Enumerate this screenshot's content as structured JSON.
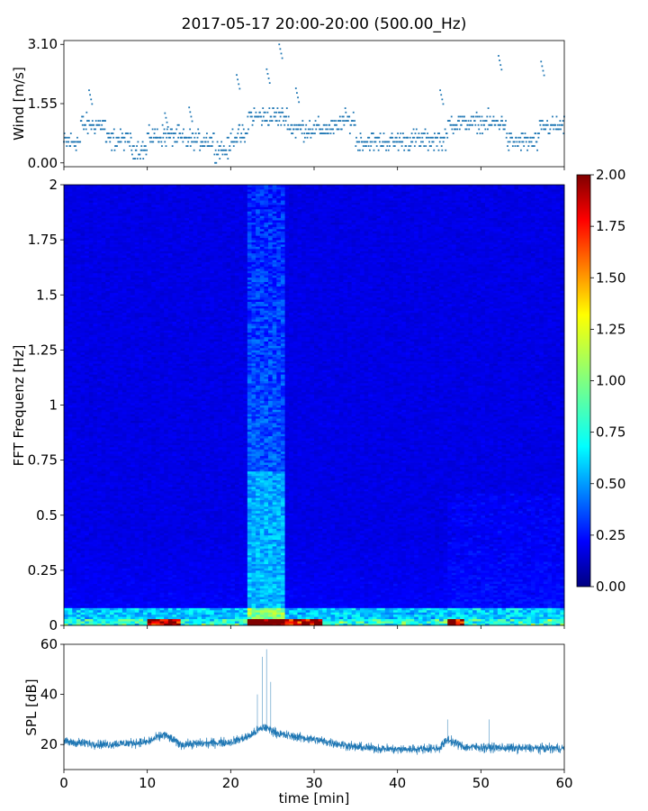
{
  "title": "2017-05-17 20:00-20:00 (500.00_Hz)",
  "colors": {
    "series": "#1f77b4",
    "jet": [
      "#000080",
      "#0000ff",
      "#0080ff",
      "#00ffff",
      "#80ff80",
      "#ffff00",
      "#ff8000",
      "#ff0000",
      "#800000"
    ]
  },
  "chart_data": [
    {
      "id": "wind",
      "type": "scatter",
      "ylabel": "Wind [m/s]",
      "xlim": [
        0,
        60
      ],
      "ylim": [
        -0.1,
        3.2
      ],
      "yticks": [
        0.0,
        1.55,
        3.1
      ],
      "ytick_labels": [
        "0.00",
        "1.55",
        "3.10"
      ],
      "values_description_free": true,
      "segments": [
        {
          "x": [
            0,
            2
          ],
          "mean": 0.55
        },
        {
          "x": [
            2,
            5
          ],
          "mean": 1.0
        },
        {
          "x": [
            5,
            8
          ],
          "mean": 0.6
        },
        {
          "x": [
            8,
            10
          ],
          "mean": 0.35
        },
        {
          "x": [
            10,
            14
          ],
          "mean": 0.7
        },
        {
          "x": [
            14,
            18
          ],
          "mean": 0.6
        },
        {
          "x": [
            18,
            20
          ],
          "mean": 0.35
        },
        {
          "x": [
            20,
            22
          ],
          "mean": 0.7
        },
        {
          "x": [
            22,
            27
          ],
          "mean": 1.2
        },
        {
          "x": [
            27,
            33
          ],
          "mean": 0.9
        },
        {
          "x": [
            33,
            35
          ],
          "mean": 1.1
        },
        {
          "x": [
            35,
            40
          ],
          "mean": 0.55
        },
        {
          "x": [
            40,
            46
          ],
          "mean": 0.6
        },
        {
          "x": [
            46,
            53
          ],
          "mean": 1.05
        },
        {
          "x": [
            53,
            57
          ],
          "mean": 0.55
        },
        {
          "x": [
            57,
            60
          ],
          "mean": 0.95
        }
      ],
      "peaks": [
        [
          3.2,
          1.9
        ],
        [
          12.3,
          1.3
        ],
        [
          15.2,
          1.45
        ],
        [
          20.9,
          2.3
        ],
        [
          24.5,
          2.45
        ],
        [
          26.0,
          3.1
        ],
        [
          28.0,
          1.95
        ],
        [
          45.3,
          1.9
        ],
        [
          52.3,
          2.8
        ],
        [
          57.4,
          2.65
        ]
      ]
    },
    {
      "id": "spectrogram",
      "type": "heatmap",
      "ylabel": "FFT Frequenz [Hz]",
      "xlim": [
        0,
        60
      ],
      "ylim": [
        0,
        2
      ],
      "yticks": [
        0,
        0.25,
        0.5,
        0.75,
        1,
        1.25,
        1.5,
        1.75,
        2
      ],
      "ytick_labels": [
        "0",
        "0.25",
        "0.5",
        "0.75",
        "1",
        "1.25",
        "1.5",
        "1.75",
        "2"
      ],
      "colorbar": {
        "range": [
          0,
          2
        ],
        "ticks": [
          0,
          0.25,
          0.5,
          0.75,
          1,
          1.25,
          1.5,
          1.75,
          2
        ],
        "tick_labels": [
          "0.00",
          "0.25",
          "0.50",
          "0.75",
          "1.00",
          "1.25",
          "1.50",
          "1.75",
          "2.00"
        ]
      },
      "bright_band_x": [
        22,
        26.5
      ],
      "secondary_band_x": [
        46,
        60
      ],
      "low_freq_hot_x": [
        [
          10,
          14
        ],
        [
          22,
          27
        ],
        [
          27,
          31
        ],
        [
          46,
          48
        ]
      ]
    },
    {
      "id": "spl",
      "type": "line",
      "ylabel": "SPL [dB]",
      "xlabel": "time [min]",
      "xlim": [
        0,
        60
      ],
      "ylim": [
        10,
        60
      ],
      "yticks": [
        20,
        40,
        60
      ],
      "ytick_labels": [
        "20",
        "40",
        "60"
      ],
      "xticks": [
        0,
        10,
        20,
        30,
        40,
        50,
        60
      ],
      "xtick_labels": [
        "0",
        "10",
        "20",
        "30",
        "40",
        "50",
        "60"
      ],
      "trend": [
        [
          0,
          21
        ],
        [
          5,
          20
        ],
        [
          10,
          21
        ],
        [
          12,
          24
        ],
        [
          14,
          20
        ],
        [
          20,
          21
        ],
        [
          22,
          23
        ],
        [
          24,
          27
        ],
        [
          26,
          24
        ],
        [
          30,
          22
        ],
        [
          35,
          19
        ],
        [
          40,
          18
        ],
        [
          45,
          18.5
        ],
        [
          46,
          22
        ],
        [
          48,
          19
        ],
        [
          55,
          18.5
        ],
        [
          60,
          18.5
        ]
      ],
      "spikes": [
        [
          23.8,
          55
        ],
        [
          24.3,
          58
        ],
        [
          24.8,
          45
        ],
        [
          23.2,
          40
        ],
        [
          46,
          30
        ],
        [
          51,
          30
        ]
      ]
    }
  ]
}
